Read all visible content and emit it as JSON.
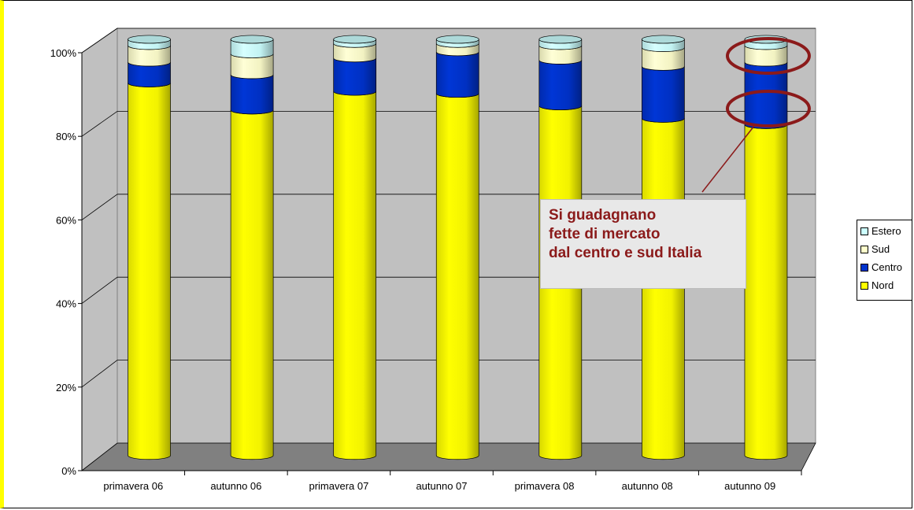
{
  "chart_data": {
    "type": "bar",
    "stacked": "percent",
    "three_d": true,
    "categories": [
      "primavera 06",
      "autunno 06",
      "primavera 07",
      "autunno 07",
      "primavera 08",
      "autunno 08",
      "autunno 09"
    ],
    "series": [
      {
        "name": "Nord",
        "color": "#ffff00",
        "values": [
          89.5,
          83,
          87.5,
          87,
          84,
          81,
          79.5
        ]
      },
      {
        "name": "Centro",
        "color": "#0033cc",
        "values": [
          5,
          8.5,
          8,
          10,
          11,
          12.5,
          15
        ]
      },
      {
        "name": "Sud",
        "color": "#ffffcc",
        "values": [
          4,
          5,
          3.5,
          2,
          3.5,
          4.5,
          4
        ]
      },
      {
        "name": "Estero",
        "color": "#ccffff",
        "values": [
          1.5,
          3.5,
          1,
          1,
          1.5,
          2,
          1.5
        ]
      }
    ],
    "y_ticks": [
      "0%",
      "20%",
      "40%",
      "60%",
      "80%",
      "100%"
    ],
    "ylim": [
      0,
      100
    ],
    "grid": true,
    "legend_position": "right"
  },
  "annotation": {
    "lines": [
      "Si guadagnano",
      "fette di mercato",
      "dal centro e sud Italia"
    ],
    "color": "#8b1a1a"
  },
  "legend": [
    {
      "label": "Estero",
      "color": "#ccffff"
    },
    {
      "label": "Sud",
      "color": "#ffffcc"
    },
    {
      "label": "Centro",
      "color": "#0033cc"
    },
    {
      "label": "Nord",
      "color": "#ffff00"
    }
  ]
}
